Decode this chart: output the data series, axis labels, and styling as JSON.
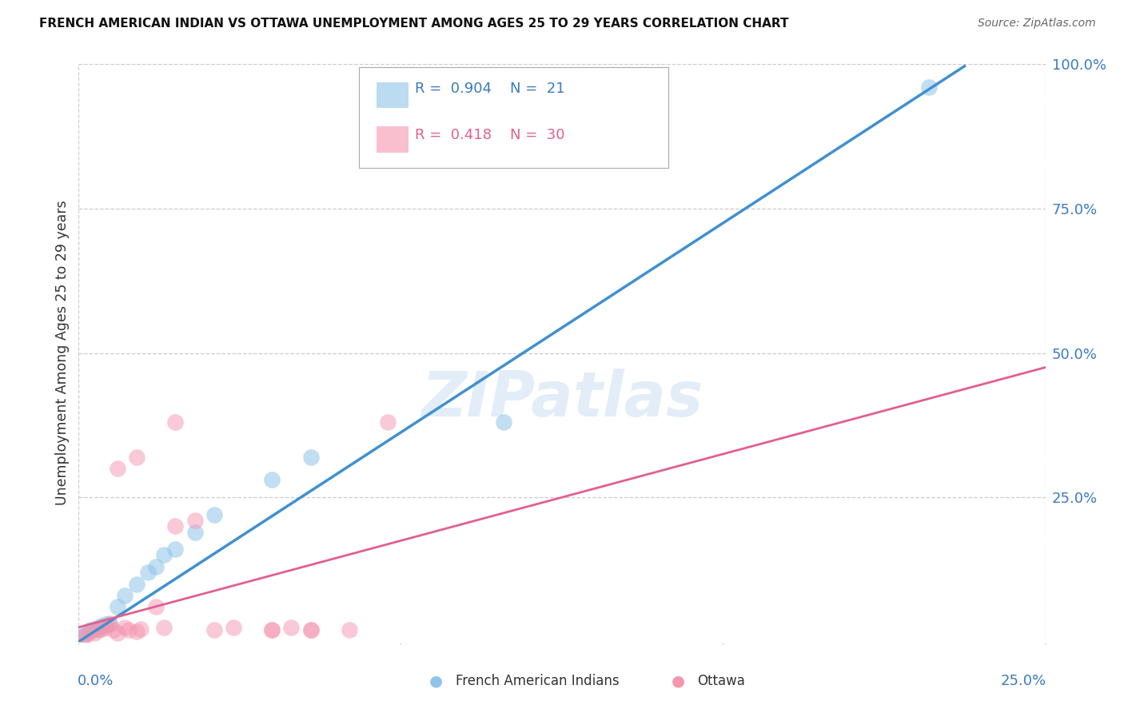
{
  "title": "FRENCH AMERICAN INDIAN VS OTTAWA UNEMPLOYMENT AMONG AGES 25 TO 29 YEARS CORRELATION CHART",
  "source": "Source: ZipAtlas.com",
  "ylabel": "Unemployment Among Ages 25 to 29 years",
  "xlim": [
    0.0,
    0.25
  ],
  "ylim": [
    0.0,
    1.0
  ],
  "ytick_labels": [
    "25.0%",
    "50.0%",
    "75.0%",
    "100.0%"
  ],
  "ytick_positions": [
    0.25,
    0.5,
    0.75,
    1.0
  ],
  "xtick_positions": [
    0.0,
    0.25
  ],
  "xtick_labels": [
    "0.0%",
    "25.0%"
  ],
  "legend_r1": "0.904",
  "legend_n1": "21",
  "legend_r2": "0.418",
  "legend_n2": "30",
  "legend_label1": "French American Indians",
  "legend_label2": "Ottawa",
  "color_blue": "#8ec4e8",
  "color_pink": "#f595b0",
  "color_blue_line": "#4090d0",
  "color_pink_line": "#e06090",
  "watermark": "ZIPatlas",
  "blue_points": [
    [
      0.001,
      0.01
    ],
    [
      0.002,
      0.015
    ],
    [
      0.003,
      0.02
    ],
    [
      0.004,
      0.022
    ],
    [
      0.005,
      0.025
    ],
    [
      0.006,
      0.028
    ],
    [
      0.007,
      0.03
    ],
    [
      0.008,
      0.032
    ],
    [
      0.01,
      0.06
    ],
    [
      0.012,
      0.08
    ],
    [
      0.015,
      0.1
    ],
    [
      0.018,
      0.12
    ],
    [
      0.02,
      0.13
    ],
    [
      0.022,
      0.15
    ],
    [
      0.025,
      0.16
    ],
    [
      0.03,
      0.19
    ],
    [
      0.035,
      0.22
    ],
    [
      0.05,
      0.28
    ],
    [
      0.06,
      0.32
    ],
    [
      0.11,
      0.38
    ],
    [
      0.22,
      0.96
    ]
  ],
  "pink_points": [
    [
      0.001,
      0.005
    ],
    [
      0.002,
      0.012
    ],
    [
      0.003,
      0.018
    ],
    [
      0.004,
      0.015
    ],
    [
      0.005,
      0.02
    ],
    [
      0.006,
      0.022
    ],
    [
      0.007,
      0.025
    ],
    [
      0.008,
      0.03
    ],
    [
      0.009,
      0.02
    ],
    [
      0.01,
      0.015
    ],
    [
      0.012,
      0.025
    ],
    [
      0.013,
      0.02
    ],
    [
      0.015,
      0.018
    ],
    [
      0.016,
      0.022
    ],
    [
      0.02,
      0.06
    ],
    [
      0.022,
      0.025
    ],
    [
      0.025,
      0.2
    ],
    [
      0.03,
      0.21
    ],
    [
      0.035,
      0.02
    ],
    [
      0.04,
      0.025
    ],
    [
      0.05,
      0.02
    ],
    [
      0.055,
      0.025
    ],
    [
      0.06,
      0.02
    ],
    [
      0.07,
      0.02
    ],
    [
      0.015,
      0.32
    ],
    [
      0.01,
      0.3
    ],
    [
      0.025,
      0.38
    ],
    [
      0.08,
      0.38
    ],
    [
      0.05,
      0.02
    ],
    [
      0.06,
      0.02
    ]
  ],
  "blue_slope": 4.35,
  "blue_intercept": 0.0,
  "pink_slope": 1.8,
  "pink_intercept": 0.025
}
